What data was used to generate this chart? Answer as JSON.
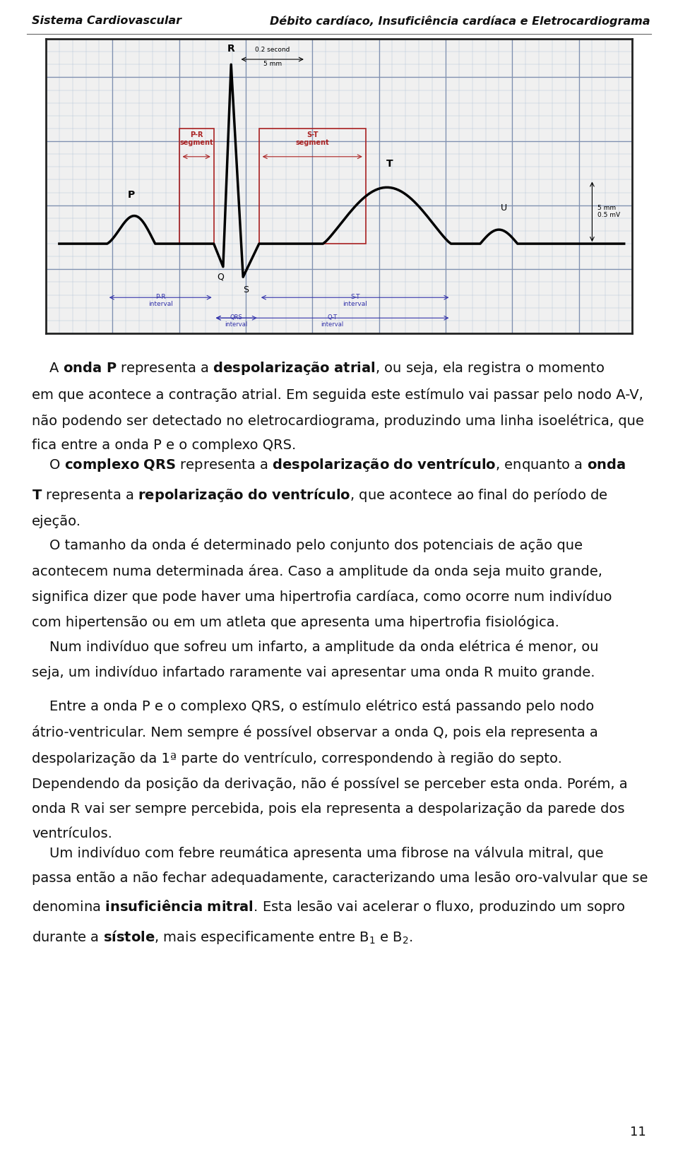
{
  "header_left": "Sistema Cardiovascular",
  "header_right": "Débito cardíaco, Insuficiência cardíaca e Eletrocardiograma",
  "page_number": "11",
  "ecg_bg": "#f0f0f0",
  "grid_fine_color": "#b8c8d8",
  "grid_bold_color": "#8090b0",
  "ecg_border_color": "#222222",
  "waveform_color": "#000000",
  "segment_box_color": "#aa2222",
  "segment_box_face": "#ffaaaa",
  "interval_arrow_color": "#3333aa",
  "annotation_color": "#aa2222",
  "text_color": "#111111",
  "header_color": "#111111",
  "page_bg": "#ffffff",
  "font_size": 13.5,
  "header_font_size": 11.5
}
